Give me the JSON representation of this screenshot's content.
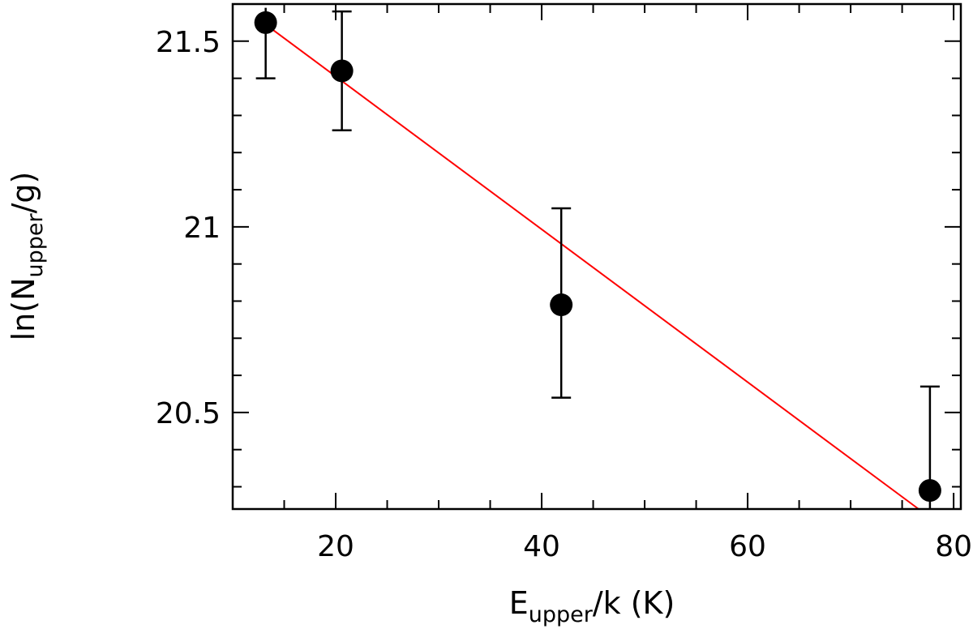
{
  "chart_data": {
    "type": "scatter",
    "title": "",
    "xlabel": {
      "base": "E",
      "sub": "upper",
      "rest": "/k (K)"
    },
    "ylabel": {
      "prefix": "ln(N",
      "sub": "upper",
      "suffix": "/g)"
    },
    "xlim": [
      10,
      80.7
    ],
    "ylim": [
      20.24,
      21.6
    ],
    "xticks": {
      "major": [
        20,
        40,
        60,
        80
      ],
      "major_labels": [
        "20",
        "40",
        "60",
        "80"
      ],
      "minor_step": 5
    },
    "yticks": {
      "major": [
        20.5,
        21,
        21.5
      ],
      "major_labels": [
        "20.5",
        "21",
        "21.5"
      ],
      "minor_step": 0.1
    },
    "grid": false,
    "legend": "none",
    "series": [
      {
        "kind": "points",
        "color": "#000000",
        "points": [
          {
            "x": 13.2,
            "y": 21.55,
            "err_low": 21.4,
            "err_high": 21.59
          },
          {
            "x": 20.6,
            "y": 21.42,
            "err_low": 21.26,
            "err_high": 21.58
          },
          {
            "x": 41.9,
            "y": 20.79,
            "err_low": 20.54,
            "err_high": 21.05
          },
          {
            "x": 77.7,
            "y": 20.29,
            "err_low": 20.24,
            "err_high": 20.57
          }
        ]
      },
      {
        "kind": "fit-line",
        "color": "#ff0000",
        "x": [
          13.2,
          76.6
        ],
        "y": [
          21.545,
          20.24
        ]
      }
    ]
  }
}
